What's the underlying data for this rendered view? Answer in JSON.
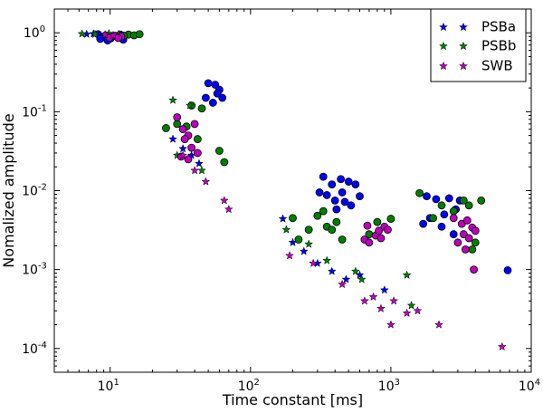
{
  "chart_data": {
    "type": "scatter",
    "title": "",
    "xlabel": "Time constant [ms]",
    "ylabel": "Nomalized amplitude",
    "x_scale": "log",
    "y_scale": "log",
    "xlim": [
      4,
      10000
    ],
    "ylim": [
      5e-05,
      2
    ],
    "x_ticks": [
      {
        "value": 10,
        "base": "10",
        "exp": "1"
      },
      {
        "value": 100,
        "base": "10",
        "exp": "2"
      },
      {
        "value": 1000,
        "base": "10",
        "exp": "3"
      },
      {
        "value": 10000,
        "base": "10",
        "exp": "4"
      }
    ],
    "y_ticks": [
      {
        "value": 1,
        "base": "10",
        "exp": "0"
      },
      {
        "value": 0.1,
        "base": "10",
        "exp": "-1"
      },
      {
        "value": 0.01,
        "base": "10",
        "exp": "-2"
      },
      {
        "value": 0.001,
        "base": "10",
        "exp": "-3"
      },
      {
        "value": 0.0001,
        "base": "10",
        "exp": "-4"
      }
    ],
    "grid": false,
    "legend_position": "top-right",
    "legend": [
      {
        "label": "PSBa",
        "color": "#0000ff"
      },
      {
        "label": "PSBb",
        "color": "#008000"
      },
      {
        "label": "SWB",
        "color": "#bf00bf"
      }
    ],
    "series": [
      {
        "name": "PSBa",
        "color": "#0000ff",
        "circles": [
          [
            8.2,
            0.96
          ],
          [
            8.8,
            0.88
          ],
          [
            9.3,
            0.93
          ],
          [
            10.1,
            0.85
          ],
          [
            11.2,
            0.9
          ],
          [
            12.4,
            0.82
          ],
          [
            9.6,
            0.8
          ],
          [
            8.5,
            0.84
          ],
          [
            11.8,
            0.95
          ],
          [
            50,
            0.23
          ],
          [
            56,
            0.22
          ],
          [
            60,
            0.19
          ],
          [
            48,
            0.15
          ],
          [
            54,
            0.13
          ],
          [
            63,
            0.15
          ],
          [
            58,
            0.17
          ],
          [
            330,
            0.015
          ],
          [
            380,
            0.012
          ],
          [
            440,
            0.014
          ],
          [
            500,
            0.013
          ],
          [
            560,
            0.012
          ],
          [
            600,
            0.0085
          ],
          [
            450,
            0.0095
          ],
          [
            400,
            0.0075
          ],
          [
            520,
            0.0065
          ],
          [
            310,
            0.0095
          ],
          [
            350,
            0.0088
          ],
          [
            470,
            0.0072
          ],
          [
            410,
            0.0058
          ],
          [
            1800,
            0.0085
          ],
          [
            2100,
            0.0078
          ],
          [
            2600,
            0.008
          ],
          [
            3100,
            0.0075
          ],
          [
            2900,
            0.0058
          ],
          [
            2400,
            0.005
          ],
          [
            1900,
            0.0045
          ],
          [
            2300,
            0.0035
          ],
          [
            2800,
            0.0028
          ],
          [
            1700,
            0.0038
          ],
          [
            6800,
            0.00098
          ]
        ],
        "stars": [
          [
            6.8,
            0.96
          ],
          [
            7.6,
            0.97
          ],
          [
            28,
            0.045
          ],
          [
            33,
            0.034
          ],
          [
            38,
            0.028
          ],
          [
            43,
            0.022
          ],
          [
            170,
            0.0044
          ],
          [
            200,
            0.0022
          ],
          [
            240,
            0.0017
          ],
          [
            300,
            0.0012
          ],
          [
            380,
            0.00095
          ],
          [
            480,
            0.00075
          ],
          [
            600,
            0.00085
          ],
          [
            900,
            0.00055
          ]
        ]
      },
      {
        "name": "PSBb",
        "color": "#008000",
        "circles": [
          [
            13.5,
            0.95
          ],
          [
            14.8,
            0.93
          ],
          [
            16.2,
            0.96
          ],
          [
            12.5,
            0.92
          ],
          [
            25,
            0.062
          ],
          [
            30,
            0.07
          ],
          [
            35,
            0.065
          ],
          [
            38,
            0.12
          ],
          [
            45,
            0.11
          ],
          [
            42,
            0.045
          ],
          [
            60,
            0.032
          ],
          [
            65,
            0.023
          ],
          [
            200,
            0.0045
          ],
          [
            220,
            0.0024
          ],
          [
            260,
            0.0032
          ],
          [
            300,
            0.0048
          ],
          [
            350,
            0.0035
          ],
          [
            330,
            0.0055
          ],
          [
            380,
            0.0032
          ],
          [
            410,
            0.004
          ],
          [
            450,
            0.0024
          ],
          [
            700,
            0.0028
          ],
          [
            800,
            0.004
          ],
          [
            1000,
            0.0044
          ],
          [
            1600,
            0.0093
          ],
          [
            2000,
            0.0045
          ],
          [
            2300,
            0.0065
          ],
          [
            2800,
            0.0055
          ],
          [
            3300,
            0.0075
          ],
          [
            3600,
            0.0065
          ],
          [
            4400,
            0.0075
          ],
          [
            3800,
            0.0018
          ],
          [
            4000,
            0.0022
          ]
        ],
        "stars": [
          [
            6.3,
            0.97
          ],
          [
            7.8,
            0.96
          ],
          [
            9.8,
            0.98
          ],
          [
            11.5,
            0.96
          ],
          [
            28,
            0.14
          ],
          [
            30,
            0.028
          ],
          [
            37,
            0.12
          ],
          [
            45,
            0.018
          ],
          [
            180,
            0.0032
          ],
          [
            260,
            0.0021
          ],
          [
            350,
            0.0013
          ],
          [
            560,
            0.00095
          ],
          [
            620,
            0.00075
          ],
          [
            1300,
            0.00085
          ],
          [
            1400,
            0.00035
          ]
        ]
      },
      {
        "name": "SWB",
        "color": "#bf00bf",
        "circles": [
          [
            10.8,
            0.92
          ],
          [
            12,
            0.9
          ],
          [
            11.4,
            0.86
          ],
          [
            9.9,
            0.87
          ],
          [
            30,
            0.085
          ],
          [
            33,
            0.06
          ],
          [
            36,
            0.05
          ],
          [
            40,
            0.07
          ],
          [
            34,
            0.045
          ],
          [
            38,
            0.035
          ],
          [
            42,
            0.03
          ],
          [
            36,
            0.025
          ],
          [
            32,
            0.027
          ],
          [
            650,
            0.0024
          ],
          [
            700,
            0.0022
          ],
          [
            780,
            0.0027
          ],
          [
            850,
            0.0025
          ],
          [
            900,
            0.0035
          ],
          [
            950,
            0.0032
          ],
          [
            680,
            0.0036
          ],
          [
            820,
            0.0031
          ],
          [
            2800,
            0.0045
          ],
          [
            3200,
            0.0038
          ],
          [
            3500,
            0.0042
          ],
          [
            3800,
            0.0034
          ],
          [
            3300,
            0.0028
          ],
          [
            3600,
            0.0025
          ],
          [
            4000,
            0.0031
          ],
          [
            3000,
            0.0022
          ],
          [
            3400,
            0.0018
          ],
          [
            3900,
            0.001
          ]
        ],
        "stars": [
          [
            9.2,
            0.95
          ],
          [
            10.5,
            0.93
          ],
          [
            33,
            0.028
          ],
          [
            40,
            0.018
          ],
          [
            48,
            0.013
          ],
          [
            65,
            0.0075
          ],
          [
            70,
            0.0058
          ],
          [
            190,
            0.0015
          ],
          [
            280,
            0.0012
          ],
          [
            450,
            0.00065
          ],
          [
            650,
            0.0004
          ],
          [
            750,
            0.00045
          ],
          [
            850,
            0.00032
          ],
          [
            1000,
            0.0002
          ],
          [
            1050,
            0.0004
          ],
          [
            1300,
            0.00028
          ],
          [
            1550,
            0.0003
          ],
          [
            2200,
            0.0002
          ],
          [
            6200,
            0.000105
          ]
        ]
      }
    ]
  }
}
